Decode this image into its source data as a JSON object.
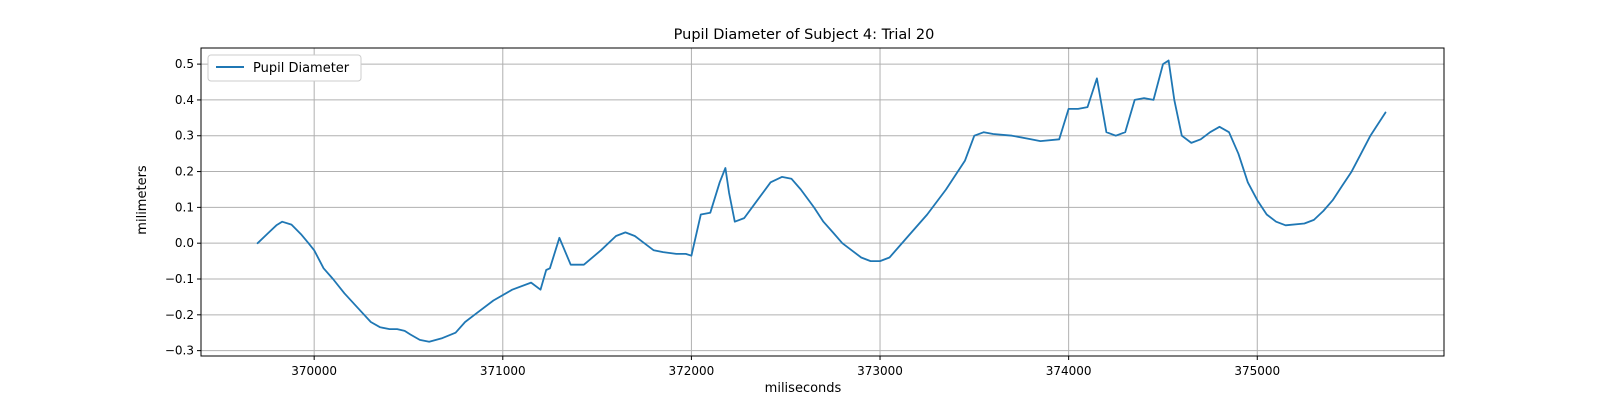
{
  "chart_data": {
    "type": "line",
    "title": "Pupil Diameter of Subject 4: Trial 20",
    "xlabel": "miliseconds",
    "ylabel": "milimeters",
    "xlim": [
      369400,
      375990
    ],
    "ylim": [
      -0.315,
      0.545
    ],
    "x_ticks": [
      370000,
      371000,
      372000,
      373000,
      374000,
      375000
    ],
    "y_ticks": [
      -0.3,
      -0.2,
      -0.1,
      0.0,
      0.1,
      0.2,
      0.3,
      0.4,
      0.5
    ],
    "x_tick_labels": [
      "370000",
      "371000",
      "372000",
      "373000",
      "374000",
      "375000"
    ],
    "y_tick_labels": [
      "−0.3",
      "−0.2",
      "−0.1",
      "0.0",
      "0.1",
      "0.2",
      "0.3",
      "0.4",
      "0.5"
    ],
    "grid": true,
    "legend": {
      "position": "top-left",
      "entries": [
        "Pupil Diameter"
      ]
    },
    "colors": {
      "series": "#1f77b4",
      "grid": "#b0b0b0"
    },
    "series": [
      {
        "name": "Pupil Diameter",
        "x": [
          369700,
          369760,
          369800,
          369830,
          369880,
          369930,
          369970,
          370000,
          370050,
          370100,
          370160,
          370230,
          370300,
          370350,
          370400,
          370440,
          370480,
          370510,
          370560,
          370610,
          370680,
          370750,
          370800,
          370850,
          370950,
          371050,
          371150,
          371200,
          371230,
          371250,
          371300,
          371360,
          371430,
          371520,
          371600,
          371650,
          371700,
          371750,
          371800,
          371850,
          371920,
          371970,
          372000,
          372050,
          372100,
          372150,
          372180,
          372200,
          372230,
          372280,
          372350,
          372420,
          372480,
          372530,
          372580,
          372650,
          372700,
          372750,
          372800,
          372850,
          372900,
          372950,
          373000,
          373050,
          373150,
          373250,
          373350,
          373450,
          373500,
          373550,
          373600,
          373700,
          373800,
          373850,
          373950,
          374000,
          374050,
          374100,
          374150,
          374200,
          374250,
          374300,
          374350,
          374400,
          374450,
          374500,
          374530,
          374560,
          374600,
          374650,
          374700,
          374750,
          374800,
          374850,
          374900,
          374950,
          375000,
          375050,
          375100,
          375150,
          375250,
          375300,
          375350,
          375400,
          375450,
          375500,
          375550,
          375600,
          375680
        ],
        "values": [
          0.0,
          0.03,
          0.05,
          0.06,
          0.052,
          0.025,
          0.0,
          -0.02,
          -0.07,
          -0.1,
          -0.14,
          -0.18,
          -0.22,
          -0.235,
          -0.24,
          -0.24,
          -0.245,
          -0.255,
          -0.27,
          -0.275,
          -0.265,
          -0.25,
          -0.22,
          -0.2,
          -0.16,
          -0.13,
          -0.11,
          -0.13,
          -0.075,
          -0.07,
          0.015,
          -0.06,
          -0.06,
          -0.02,
          0.02,
          0.03,
          0.02,
          0.0,
          -0.02,
          -0.025,
          -0.03,
          -0.03,
          -0.035,
          0.08,
          0.085,
          0.17,
          0.21,
          0.14,
          0.06,
          0.07,
          0.12,
          0.17,
          0.185,
          0.18,
          0.15,
          0.1,
          0.06,
          0.03,
          0.0,
          -0.02,
          -0.04,
          -0.05,
          -0.05,
          -0.04,
          0.02,
          0.08,
          0.15,
          0.23,
          0.3,
          0.31,
          0.305,
          0.3,
          0.29,
          0.285,
          0.29,
          0.375,
          0.375,
          0.38,
          0.46,
          0.31,
          0.3,
          0.31,
          0.4,
          0.405,
          0.4,
          0.5,
          0.51,
          0.4,
          0.3,
          0.28,
          0.29,
          0.31,
          0.325,
          0.31,
          0.25,
          0.17,
          0.12,
          0.08,
          0.06,
          0.05,
          0.055,
          0.065,
          0.09,
          0.12,
          0.16,
          0.2,
          0.25,
          0.3,
          0.365
        ]
      }
    ]
  }
}
